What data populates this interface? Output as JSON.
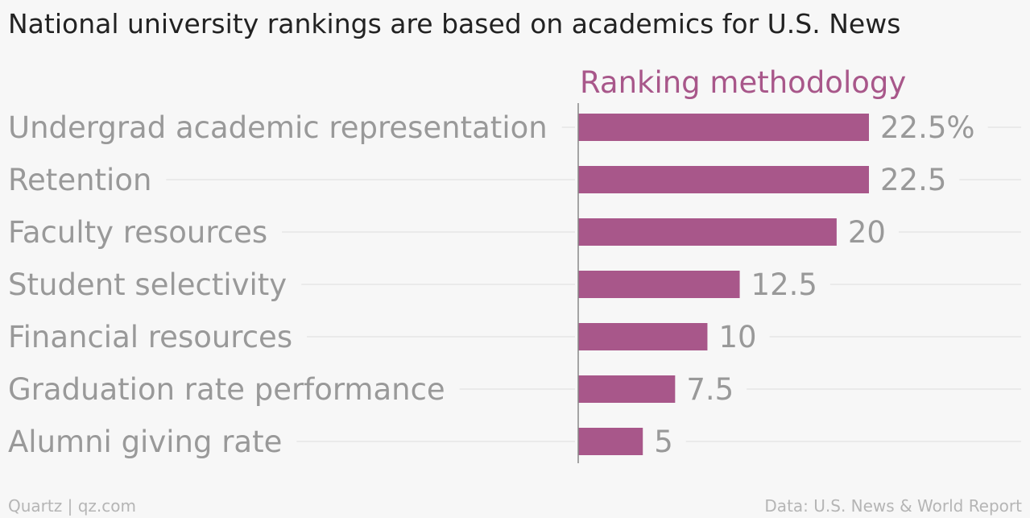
{
  "title": "National university rankings are based on academics for U.S. News",
  "chart_data": {
    "type": "bar",
    "orientation": "horizontal",
    "series": [
      {
        "name": "Ranking methodology",
        "values": [
          22.5,
          22.5,
          20,
          12.5,
          10,
          7.5,
          5
        ]
      }
    ],
    "categories": [
      "Undergrad academic representation",
      "Retention",
      "Faculty resources",
      "Student selectivity",
      "Financial resources",
      "Graduation rate performance",
      "Alumni giving rate"
    ],
    "value_labels": [
      "22.5%",
      "22.5",
      "20",
      "12.5",
      "10",
      "7.5",
      "5"
    ],
    "xlim": [
      0,
      22.5
    ],
    "grid": false,
    "bar_color": "#a8578a",
    "text_color": "#999999",
    "series_color": "#a8578a"
  },
  "footer": {
    "left": "Quartz | qz.com",
    "right": "Data: U.S. News & World Report"
  }
}
